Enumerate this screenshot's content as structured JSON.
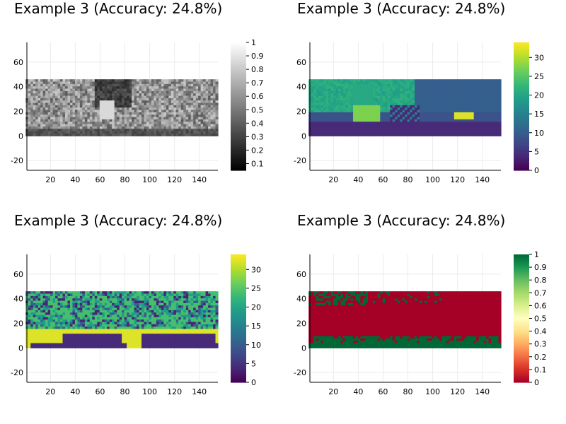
{
  "chart_data": [
    {
      "type": "heatmap",
      "title": "Example 3 (Accuracy: 24.8%)",
      "content": "grayscale street image",
      "colormap": "grays",
      "xticks": [
        20,
        40,
        60,
        80,
        100,
        120,
        140
      ],
      "yticks": [
        -20,
        0,
        20,
        40,
        60
      ],
      "xlim": [
        1,
        155
      ],
      "ylim": [
        -28,
        76
      ],
      "image_extent": {
        "x": [
          0,
          155
        ],
        "y": [
          0,
          46
        ]
      },
      "colorbar": {
        "min": 0.05,
        "max": 1.0,
        "ticks": [
          0.1,
          0.2,
          0.3,
          0.4,
          0.5,
          0.6,
          0.7,
          0.8,
          0.9,
          1.0
        ]
      },
      "grid": true
    },
    {
      "type": "heatmap",
      "title": "Example 3 (Accuracy: 24.8%)",
      "content": "ground-truth segmentation labels",
      "colormap": "viridis",
      "xticks": [
        20,
        40,
        60,
        80,
        100,
        120,
        140
      ],
      "yticks": [
        -20,
        0,
        20,
        40,
        60
      ],
      "xlim": [
        1,
        155
      ],
      "ylim": [
        -28,
        76
      ],
      "image_extent": {
        "x": [
          0,
          155
        ],
        "y": [
          0,
          46
        ]
      },
      "colorbar": {
        "min": 0,
        "max": 34,
        "ticks": [
          0,
          5,
          10,
          15,
          20,
          25,
          30
        ]
      },
      "grid": true
    },
    {
      "type": "heatmap",
      "title": "Example 3 (Accuracy: 24.8%)",
      "content": "predicted segmentation labels",
      "colormap": "viridis",
      "xticks": [
        20,
        40,
        60,
        80,
        100,
        120,
        140
      ],
      "yticks": [
        -20,
        0,
        20,
        40,
        60
      ],
      "xlim": [
        1,
        155
      ],
      "ylim": [
        -28,
        76
      ],
      "image_extent": {
        "x": [
          0,
          155
        ],
        "y": [
          0,
          46
        ]
      },
      "colorbar": {
        "min": 0,
        "max": 34,
        "ticks": [
          0,
          5,
          10,
          15,
          20,
          25,
          30
        ]
      },
      "grid": true
    },
    {
      "type": "heatmap",
      "title": "Example 3 (Accuracy: 24.8%)",
      "content": "per-pixel correctness (1 = correct, 0 = wrong)",
      "colormap": "RdYlGn",
      "xticks": [
        20,
        40,
        60,
        80,
        100,
        120,
        140
      ],
      "yticks": [
        -20,
        0,
        20,
        40,
        60
      ],
      "xlim": [
        1,
        155
      ],
      "ylim": [
        -28,
        76
      ],
      "image_extent": {
        "x": [
          0,
          155
        ],
        "y": [
          0,
          46
        ]
      },
      "colorbar": {
        "min": 0,
        "max": 1.0,
        "ticks": [
          0,
          0.1,
          0.2,
          0.3,
          0.4,
          0.5,
          0.6,
          0.7,
          0.8,
          0.9,
          1.0
        ]
      },
      "grid": true
    }
  ],
  "colors": {
    "viridis": [
      "#440154",
      "#482878",
      "#3e4a89",
      "#31688e",
      "#26828e",
      "#1f9e89",
      "#35b779",
      "#6ece58",
      "#b5de2b",
      "#fde725"
    ],
    "grays": [
      "#000000",
      "#ffffff"
    ],
    "RdYlGn": [
      "#a50026",
      "#d73027",
      "#f46d43",
      "#fdae61",
      "#fee08b",
      "#ffffbf",
      "#d9ef8b",
      "#a6d96a",
      "#66bd63",
      "#1a9850",
      "#006837"
    ],
    "gridline": "#ebebeb",
    "axis": "#000000"
  }
}
